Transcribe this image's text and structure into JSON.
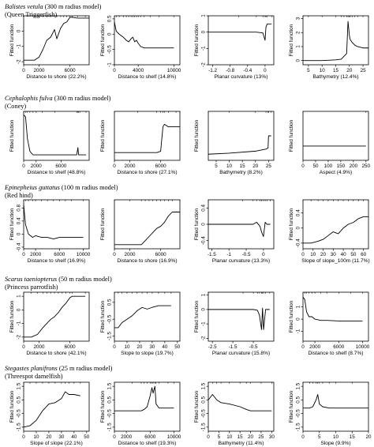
{
  "chart_data": [
    {
      "type": "line",
      "row_title": {
        "species": "Balistes vetula",
        "model": "(300 m radius model)",
        "common_name": "(Queen Triggerfish)"
      },
      "panels": [
        {
          "xlabel": "Distance to shore  (22.2%)",
          "ylabel": "Fitted function",
          "xlim": [
            0,
            8500
          ],
          "ylim": [
            -2.2,
            1.0
          ],
          "xticks": [
            0,
            2000,
            6000
          ],
          "yticks": [
            -2,
            -1,
            0
          ],
          "x": [
            0,
            1400,
            2000,
            2500,
            3000,
            3500,
            4000,
            4300,
            4800,
            5200,
            5600,
            6000,
            6300,
            7000,
            8000,
            8500
          ],
          "y": [
            -1.9,
            -1.9,
            -1.7,
            -1.2,
            -0.6,
            -0.4,
            0.1,
            -0.5,
            0.2,
            0.5,
            0.6,
            0.9,
            0.9,
            0.85,
            0.85,
            0.85
          ]
        },
        {
          "xlabel": "Distance to shelf  (14.8%)",
          "ylabel": "Fitted function",
          "xlim": [
            0,
            11000
          ],
          "ylim": [
            -1.0,
            0.6
          ],
          "xticks": [
            0,
            4000,
            10000
          ],
          "yticks": [
            -1.0,
            -0.5,
            0.0,
            0.5
          ],
          "x": [
            0,
            300,
            800,
            1500,
            2000,
            2400,
            2800,
            3100,
            3400,
            3700,
            4000,
            4400,
            5000,
            6000,
            7500,
            10000
          ],
          "y": [
            0.4,
            0.1,
            0.0,
            -0.1,
            -0.2,
            -0.25,
            -0.15,
            -0.1,
            -0.25,
            -0.2,
            -0.3,
            -0.4,
            -0.45,
            -0.45,
            -0.45,
            -0.45
          ]
        },
        {
          "xlabel": "Planar curvature  (13%)",
          "ylabel": "Fitted function",
          "xlim": [
            -1.3,
            0.2
          ],
          "ylim": [
            -2.0,
            1.0
          ],
          "xticks": [
            -1.2,
            -0.8,
            -0.4,
            0.0
          ],
          "yticks": [
            -2,
            -1,
            0,
            1
          ],
          "x": [
            -1.3,
            -0.6,
            -0.2,
            -0.05,
            0.0,
            0.02,
            0.05,
            0.15
          ],
          "y": [
            0.0,
            0.0,
            0.0,
            -0.05,
            -0.5,
            0.3,
            0.5,
            0.5
          ]
        },
        {
          "xlabel": "Bathymetry  (12.4%)",
          "ylabel": "Fitted function",
          "xlim": [
            3,
            27
          ],
          "ylim": [
            -0.3,
            3.2
          ],
          "xticks": [
            5,
            10,
            15,
            20,
            25
          ],
          "yticks": [
            0,
            1,
            2,
            3
          ],
          "x": [
            3,
            5,
            10,
            15,
            17,
            18,
            19,
            19.5,
            20,
            20.3,
            21,
            22,
            23,
            25,
            27
          ],
          "y": [
            0.0,
            0.0,
            0.0,
            0.05,
            0.1,
            0.3,
            0.5,
            2.8,
            1.8,
            1.5,
            1.3,
            1.1,
            1.0,
            0.9,
            0.9
          ]
        }
      ]
    },
    {
      "type": "line",
      "row_title": {
        "species": "Cephalophis fulva",
        "model": "(300 m radius model)",
        "common_name": "(Coney)"
      },
      "panels": [
        {
          "xlabel": "Distance to shelf  (48.8%)",
          "ylabel": "Fitted function",
          "xlim": [
            0,
            10500
          ],
          "ylim": [
            -1.2,
            1.5
          ],
          "xticks": [
            0,
            2000,
            6000
          ],
          "yticks": [],
          "x": [
            0,
            300,
            600,
            1000,
            1500,
            2000,
            3000,
            5000,
            8500,
            8700,
            8800,
            9000,
            10000
          ],
          "y": [
            1.3,
            1.2,
            0.0,
            -0.7,
            -0.9,
            -0.9,
            -0.9,
            -0.9,
            -0.9,
            -0.5,
            -0.9,
            -0.9,
            -0.9
          ]
        },
        {
          "xlabel": "Distance to shore  (27.1%)",
          "ylabel": "Fitted function",
          "xlim": [
            0,
            8500
          ],
          "ylim": [
            -1.3,
            0.6
          ],
          "xticks": [
            0,
            2000,
            6000
          ],
          "yticks": [],
          "x": [
            0,
            3000,
            5500,
            6000,
            6300,
            6500,
            7000,
            8000,
            8500
          ],
          "y": [
            -1.0,
            -1.0,
            -1.0,
            -0.95,
            0.0,
            0.1,
            0.0,
            0.0,
            0.0
          ]
        },
        {
          "xlabel": "Bathymetry  (8.2%)",
          "ylabel": "Fitted function",
          "xlim": [
            2,
            27
          ],
          "ylim": [
            -1.2,
            1.2
          ],
          "xticks": [
            5,
            10,
            15,
            20,
            25
          ],
          "yticks": [],
          "x": [
            2,
            10,
            20,
            24,
            24.8,
            25,
            26
          ],
          "y": [
            -0.9,
            -0.85,
            -0.75,
            -0.65,
            -0.6,
            0.0,
            0.0
          ]
        },
        {
          "xlabel": "Aspect  (4.9%)",
          "ylabel": "Fitted function",
          "xlim": [
            0,
            260
          ],
          "ylim": [
            -1.2,
            1.2
          ],
          "xticks": [
            0,
            50,
            100,
            150,
            200,
            250
          ],
          "yticks": [],
          "x": [
            0,
            250
          ],
          "y": [
            -0.5,
            -0.5
          ]
        }
      ]
    },
    {
      "type": "line",
      "row_title": {
        "species": "Epinepheius guttatus",
        "model": "(100 m radius model)",
        "common_name": "(Red hind)"
      },
      "panels": [
        {
          "xlabel": "Distance to shelf  (16.9%)",
          "ylabel": "Fitted function",
          "xlim": [
            0,
            11000
          ],
          "ylim": [
            -0.45,
            1.05
          ],
          "xticks": [
            0,
            2000,
            6000,
            10000
          ],
          "yticks": [
            -0.4,
            0.0,
            0.4,
            0.8
          ],
          "x": [
            0,
            300,
            800,
            1500,
            2000,
            3000,
            4000,
            5000,
            6000,
            7000,
            8000,
            10000
          ],
          "y": [
            0.9,
            0.3,
            0.0,
            -0.1,
            -0.05,
            -0.1,
            -0.1,
            -0.15,
            -0.1,
            -0.1,
            -0.1,
            -0.1
          ]
        },
        {
          "xlabel": "Distance to shore  (16.9%)",
          "ylabel": "Fitted function",
          "xlim": [
            0,
            8500
          ],
          "ylim": [
            -0.3,
            0.9
          ],
          "xticks": [
            0,
            2000,
            6000
          ],
          "yticks": [],
          "x": [
            0,
            2000,
            3500,
            4000,
            4500,
            5000,
            5500,
            6000,
            6500,
            7000,
            7500,
            8500
          ],
          "y": [
            -0.2,
            -0.2,
            -0.2,
            -0.1,
            0.0,
            0.1,
            0.2,
            0.25,
            0.35,
            0.5,
            0.6,
            0.6
          ]
        },
        {
          "xlabel": "Planar curvature  (13.3%)",
          "ylabel": "Fitted function",
          "xlim": [
            -1.6,
            0.3
          ],
          "ylim": [
            -0.6,
            0.6
          ],
          "xticks": [
            -1.5,
            -1.0,
            -0.5,
            0.0
          ],
          "yticks": [
            -0.4,
            0.0,
            0.4
          ],
          "x": [
            -1.6,
            -0.6,
            -0.3,
            -0.2,
            -0.1,
            -0.05,
            0.0,
            0.05,
            0.1,
            0.2
          ],
          "y": [
            0.0,
            0.0,
            0.0,
            0.05,
            -0.05,
            -0.2,
            -0.3,
            0.05,
            0.0,
            0.0
          ]
        },
        {
          "xlabel": "Slope of slope_100m  (11.7%)",
          "ylabel": "Fitted function",
          "xlim": [
            0,
            65
          ],
          "ylim": [
            -0.55,
            0.75
          ],
          "xticks": [
            0,
            10,
            20,
            30,
            40,
            50,
            60
          ],
          "yticks": [
            -0.4,
            0.0,
            0.4
          ],
          "x": [
            0,
            8,
            15,
            20,
            25,
            30,
            35,
            40,
            45,
            50,
            55,
            60,
            65
          ],
          "y": [
            -0.4,
            -0.4,
            -0.35,
            -0.3,
            -0.2,
            -0.1,
            -0.15,
            0.0,
            0.1,
            0.15,
            0.25,
            0.3,
            0.3
          ]
        }
      ]
    },
    {
      "type": "line",
      "row_title": {
        "species": "Scarus taeniopterus",
        "model": "(50 m radius model)",
        "common_name": "(Princess parrotfish)"
      },
      "panels": [
        {
          "xlabel": "Distance to shore  (42.1%)",
          "ylabel": "Fitted function",
          "xlim": [
            0,
            8500
          ],
          "ylim": [
            -2.3,
            1.3
          ],
          "xticks": [
            0,
            2000,
            6000
          ],
          "yticks": [
            -2,
            -1,
            0,
            1
          ],
          "x": [
            0,
            1000,
            1800,
            2500,
            3000,
            3500,
            4000,
            4500,
            5000,
            5500,
            6000,
            6300,
            8000
          ],
          "y": [
            -2.0,
            -2.0,
            -1.8,
            -1.3,
            -1.0,
            -0.7,
            -0.5,
            -0.2,
            0.2,
            0.5,
            0.9,
            1.0,
            1.0
          ]
        },
        {
          "xlabel": "Slope to slope  (19.7%)",
          "ylabel": "Fitted function",
          "xlim": [
            0,
            52
          ],
          "ylim": [
            -1.8,
            1.1
          ],
          "xticks": [
            0,
            10,
            20,
            30,
            40,
            50
          ],
          "yticks": [
            -1.5,
            -0.5,
            0.5
          ],
          "x": [
            0,
            3,
            6,
            10,
            14,
            18,
            22,
            26,
            30,
            35,
            40,
            45
          ],
          "y": [
            -1.0,
            -1.0,
            -0.7,
            -0.5,
            -0.3,
            0.0,
            0.2,
            0.1,
            0.2,
            0.3,
            0.3,
            0.3
          ]
        },
        {
          "xlabel": "Planar curvature  (15.8%)",
          "ylabel": "Fitted function",
          "xlim": [
            -2.7,
            0.5
          ],
          "ylim": [
            -2.2,
            1.2
          ],
          "xticks": [
            -2.5,
            -1.5,
            -0.5
          ],
          "yticks": [
            -2,
            -1,
            0,
            1
          ],
          "x": [
            -2.7,
            -1.0,
            -0.5,
            -0.3,
            -0.2,
            -0.1,
            -0.05,
            0.0,
            0.1,
            0.3
          ],
          "y": [
            0.0,
            0.0,
            0.0,
            -0.05,
            -0.4,
            -1.4,
            0.1,
            -1.4,
            0.0,
            0.0
          ]
        },
        {
          "xlabel": "Distance to shelf  (8.7%)",
          "ylabel": "Fitted function",
          "xlim": [
            0,
            11000
          ],
          "ylim": [
            -1.8,
            2.2
          ],
          "xticks": [
            0,
            2000,
            6000,
            10000
          ],
          "yticks": [
            -1,
            0,
            1
          ],
          "x": [
            0,
            300,
            600,
            1000,
            1500,
            2000,
            3000,
            4000,
            6000,
            8000,
            10000
          ],
          "y": [
            1.8,
            1.6,
            0.6,
            0.2,
            0.2,
            0.0,
            -0.1,
            -0.1,
            -0.15,
            -0.15,
            -0.15
          ]
        }
      ]
    },
    {
      "type": "line",
      "row_title": {
        "species": "Stegastes planifrons",
        "model": "(25 m radius model)",
        "common_name": "(Threespot damelfish)"
      },
      "panels": [
        {
          "xlabel": "Slope of slope  (22.1%)",
          "ylabel": "Fitted function",
          "xlim": [
            0,
            52
          ],
          "ylim": [
            -1.8,
            1.8
          ],
          "xticks": [
            0,
            10,
            20,
            30,
            40,
            50
          ],
          "yticks": [
            -1.5,
            -0.5,
            0.5,
            1.5
          ],
          "x": [
            0,
            5,
            10,
            15,
            20,
            25,
            30,
            33,
            36,
            40,
            45
          ],
          "y": [
            -1.5,
            -1.4,
            -1.0,
            -0.3,
            0.2,
            0.3,
            0.6,
            1.1,
            0.9,
            0.9,
            0.8
          ]
        },
        {
          "xlabel": "Distance to shelf  (19.3%)",
          "ylabel": "Fitted function",
          "xlim": [
            0,
            11000
          ],
          "ylim": [
            -1.8,
            1.8
          ],
          "xticks": [
            0,
            2000,
            6000,
            10000
          ],
          "yticks": [
            -1.5,
            -0.5,
            0.5,
            1.5
          ],
          "x": [
            0,
            3000,
            4500,
            5000,
            5500,
            6000,
            6300,
            6500,
            6800,
            7000,
            7500,
            9000,
            10000
          ],
          "y": [
            -0.3,
            -0.3,
            -0.3,
            -0.2,
            0.0,
            0.8,
            1.4,
            1.0,
            1.5,
            0.2,
            -0.1,
            -0.1,
            -0.1
          ]
        },
        {
          "xlabel": "Bathymetry  (11.4%)",
          "ylabel": "Fitted function",
          "xlim": [
            0,
            31
          ],
          "ylim": [
            -1.8,
            1.8
          ],
          "xticks": [
            0,
            5,
            10,
            15,
            20,
            25,
            30
          ],
          "yticks": [
            -1.5,
            -0.5,
            0.5,
            1.5
          ],
          "x": [
            0,
            2,
            4,
            6,
            10,
            15,
            18,
            20,
            25,
            30
          ],
          "y": [
            0.5,
            0.9,
            0.5,
            0.3,
            0.2,
            0.0,
            -0.2,
            -0.3,
            -0.3,
            -0.3
          ]
        },
        {
          "xlabel": "Slope  (9.9%)",
          "ylabel": "Fitted function",
          "xlim": [
            0,
            20
          ],
          "ylim": [
            -1.8,
            1.8
          ],
          "xticks": [
            0,
            5,
            10,
            15,
            20
          ],
          "yticks": [
            -1.5,
            -0.5,
            0.5,
            1.5
          ],
          "x": [
            0,
            2,
            3,
            4,
            4.5,
            5,
            6,
            8,
            10,
            15,
            20
          ],
          "y": [
            -0.1,
            -0.1,
            0.0,
            0.5,
            0.9,
            0.2,
            0.0,
            -0.1,
            -0.1,
            -0.1,
            -0.1
          ]
        }
      ]
    }
  ]
}
